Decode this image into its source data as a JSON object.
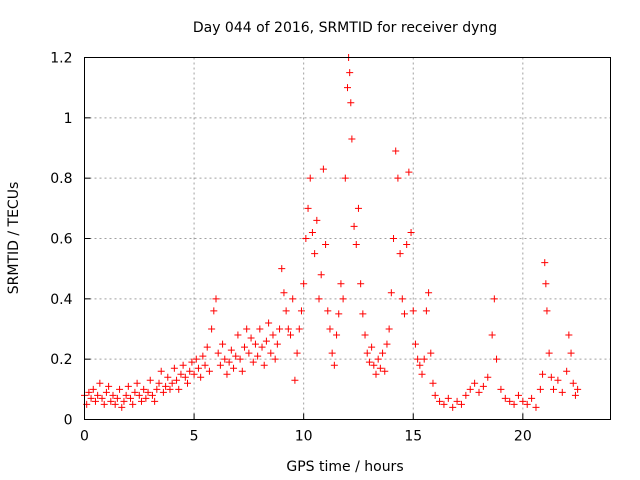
{
  "chart_data": {
    "type": "scatter",
    "title": "Day 044 of 2016, SRMTID for receiver dyng",
    "xlabel": "GPS time / hours",
    "ylabel": "SRMTID / TECUs",
    "xlim": [
      0,
      24
    ],
    "ylim": [
      0,
      1.2
    ],
    "xticks": [
      0,
      5,
      10,
      15,
      20
    ],
    "yticks": [
      0,
      0.2,
      0.4,
      0.6,
      0.8,
      1,
      1.2
    ],
    "ytick_labels": [
      "0",
      "0.2",
      "0.4",
      "0.6",
      "0.8",
      "1",
      "1.2"
    ],
    "grid": true,
    "marker": "+",
    "color": "#ff0000",
    "series": [
      {
        "name": "SRMTID",
        "points": [
          [
            0.0,
            0.08
          ],
          [
            0.1,
            0.05
          ],
          [
            0.2,
            0.09
          ],
          [
            0.3,
            0.07
          ],
          [
            0.4,
            0.1
          ],
          [
            0.5,
            0.06
          ],
          [
            0.6,
            0.08
          ],
          [
            0.7,
            0.12
          ],
          [
            0.8,
            0.07
          ],
          [
            0.9,
            0.05
          ],
          [
            1.0,
            0.09
          ],
          [
            1.1,
            0.11
          ],
          [
            1.2,
            0.06
          ],
          [
            1.3,
            0.08
          ],
          [
            1.4,
            0.05
          ],
          [
            1.5,
            0.07
          ],
          [
            1.6,
            0.1
          ],
          [
            1.7,
            0.04
          ],
          [
            1.8,
            0.06
          ],
          [
            1.9,
            0.08
          ],
          [
            2.0,
            0.11
          ],
          [
            2.1,
            0.07
          ],
          [
            2.2,
            0.05
          ],
          [
            2.3,
            0.09
          ],
          [
            2.4,
            0.12
          ],
          [
            2.5,
            0.08
          ],
          [
            2.6,
            0.06
          ],
          [
            2.7,
            0.1
          ],
          [
            2.8,
            0.07
          ],
          [
            2.9,
            0.09
          ],
          [
            3.0,
            0.13
          ],
          [
            3.1,
            0.08
          ],
          [
            3.2,
            0.06
          ],
          [
            3.3,
            0.1
          ],
          [
            3.4,
            0.12
          ],
          [
            3.5,
            0.16
          ],
          [
            3.6,
            0.09
          ],
          [
            3.7,
            0.11
          ],
          [
            3.8,
            0.14
          ],
          [
            3.9,
            0.1
          ],
          [
            4.0,
            0.12
          ],
          [
            4.1,
            0.17
          ],
          [
            4.2,
            0.13
          ],
          [
            4.3,
            0.1
          ],
          [
            4.4,
            0.15
          ],
          [
            4.5,
            0.18
          ],
          [
            4.6,
            0.14
          ],
          [
            4.7,
            0.12
          ],
          [
            4.8,
            0.16
          ],
          [
            4.9,
            0.19
          ],
          [
            5.0,
            0.15
          ],
          [
            5.1,
            0.2
          ],
          [
            5.2,
            0.17
          ],
          [
            5.3,
            0.14
          ],
          [
            5.4,
            0.21
          ],
          [
            5.5,
            0.18
          ],
          [
            5.6,
            0.24
          ],
          [
            5.7,
            0.16
          ],
          [
            5.8,
            0.3
          ],
          [
            5.9,
            0.36
          ],
          [
            6.0,
            0.4
          ],
          [
            6.1,
            0.22
          ],
          [
            6.2,
            0.18
          ],
          [
            6.3,
            0.25
          ],
          [
            6.4,
            0.2
          ],
          [
            6.5,
            0.15
          ],
          [
            6.6,
            0.19
          ],
          [
            6.7,
            0.23
          ],
          [
            6.8,
            0.17
          ],
          [
            6.9,
            0.21
          ],
          [
            7.0,
            0.28
          ],
          [
            7.1,
            0.2
          ],
          [
            7.2,
            0.16
          ],
          [
            7.3,
            0.24
          ],
          [
            7.4,
            0.3
          ],
          [
            7.5,
            0.22
          ],
          [
            7.6,
            0.27
          ],
          [
            7.7,
            0.19
          ],
          [
            7.8,
            0.25
          ],
          [
            7.9,
            0.21
          ],
          [
            8.0,
            0.3
          ],
          [
            8.1,
            0.24
          ],
          [
            8.2,
            0.18
          ],
          [
            8.3,
            0.26
          ],
          [
            8.4,
            0.32
          ],
          [
            8.5,
            0.22
          ],
          [
            8.6,
            0.28
          ],
          [
            8.7,
            0.2
          ],
          [
            8.8,
            0.25
          ],
          [
            8.9,
            0.3
          ],
          [
            9.0,
            0.5
          ],
          [
            9.1,
            0.42
          ],
          [
            9.2,
            0.36
          ],
          [
            9.3,
            0.3
          ],
          [
            9.4,
            0.28
          ],
          [
            9.5,
            0.4
          ],
          [
            9.6,
            0.13
          ],
          [
            9.7,
            0.22
          ],
          [
            9.8,
            0.3
          ],
          [
            9.9,
            0.36
          ],
          [
            10.0,
            0.45
          ],
          [
            10.1,
            0.6
          ],
          [
            10.2,
            0.7
          ],
          [
            10.3,
            0.8
          ],
          [
            10.4,
            0.62
          ],
          [
            10.5,
            0.55
          ],
          [
            10.6,
            0.66
          ],
          [
            10.7,
            0.4
          ],
          [
            10.8,
            0.48
          ],
          [
            10.9,
            0.83
          ],
          [
            11.0,
            0.58
          ],
          [
            11.1,
            0.36
          ],
          [
            11.2,
            0.3
          ],
          [
            11.3,
            0.22
          ],
          [
            11.4,
            0.18
          ],
          [
            11.5,
            0.28
          ],
          [
            11.6,
            0.35
          ],
          [
            11.7,
            0.45
          ],
          [
            11.8,
            0.4
          ],
          [
            11.9,
            0.8
          ],
          [
            12.0,
            1.1
          ],
          [
            12.05,
            1.2
          ],
          [
            12.1,
            1.15
          ],
          [
            12.15,
            1.05
          ],
          [
            12.2,
            0.93
          ],
          [
            12.3,
            0.64
          ],
          [
            12.4,
            0.58
          ],
          [
            12.5,
            0.7
          ],
          [
            12.6,
            0.45
          ],
          [
            12.7,
            0.35
          ],
          [
            12.8,
            0.28
          ],
          [
            12.9,
            0.22
          ],
          [
            13.0,
            0.19
          ],
          [
            13.1,
            0.24
          ],
          [
            13.2,
            0.18
          ],
          [
            13.3,
            0.15
          ],
          [
            13.4,
            0.2
          ],
          [
            13.5,
            0.17
          ],
          [
            13.6,
            0.22
          ],
          [
            13.7,
            0.16
          ],
          [
            13.8,
            0.25
          ],
          [
            13.9,
            0.3
          ],
          [
            14.0,
            0.42
          ],
          [
            14.1,
            0.6
          ],
          [
            14.2,
            0.89
          ],
          [
            14.3,
            0.8
          ],
          [
            14.4,
            0.55
          ],
          [
            14.5,
            0.4
          ],
          [
            14.6,
            0.35
          ],
          [
            14.7,
            0.58
          ],
          [
            14.8,
            0.82
          ],
          [
            14.9,
            0.62
          ],
          [
            15.0,
            0.36
          ],
          [
            15.1,
            0.25
          ],
          [
            15.2,
            0.2
          ],
          [
            15.3,
            0.18
          ],
          [
            15.4,
            0.15
          ],
          [
            15.5,
            0.2
          ],
          [
            15.6,
            0.36
          ],
          [
            15.7,
            0.42
          ],
          [
            15.8,
            0.22
          ],
          [
            15.9,
            0.12
          ],
          [
            16.0,
            0.08
          ],
          [
            16.2,
            0.06
          ],
          [
            16.4,
            0.05
          ],
          [
            16.6,
            0.07
          ],
          [
            16.8,
            0.04
          ],
          [
            17.0,
            0.06
          ],
          [
            17.2,
            0.05
          ],
          [
            17.4,
            0.08
          ],
          [
            17.6,
            0.1
          ],
          [
            17.8,
            0.12
          ],
          [
            18.0,
            0.09
          ],
          [
            18.2,
            0.11
          ],
          [
            18.4,
            0.14
          ],
          [
            18.6,
            0.28
          ],
          [
            18.7,
            0.4
          ],
          [
            18.8,
            0.2
          ],
          [
            19.0,
            0.1
          ],
          [
            19.2,
            0.07
          ],
          [
            19.4,
            0.06
          ],
          [
            19.6,
            0.05
          ],
          [
            19.8,
            0.08
          ],
          [
            20.0,
            0.06
          ],
          [
            20.2,
            0.05
          ],
          [
            20.4,
            0.07
          ],
          [
            20.6,
            0.04
          ],
          [
            20.8,
            0.1
          ],
          [
            20.9,
            0.15
          ],
          [
            21.0,
            0.52
          ],
          [
            21.05,
            0.45
          ],
          [
            21.1,
            0.36
          ],
          [
            21.2,
            0.22
          ],
          [
            21.3,
            0.14
          ],
          [
            21.4,
            0.1
          ],
          [
            21.6,
            0.13
          ],
          [
            21.8,
            0.09
          ],
          [
            22.0,
            0.16
          ],
          [
            22.1,
            0.28
          ],
          [
            22.2,
            0.22
          ],
          [
            22.3,
            0.12
          ],
          [
            22.4,
            0.08
          ],
          [
            22.5,
            0.1
          ]
        ]
      }
    ]
  }
}
